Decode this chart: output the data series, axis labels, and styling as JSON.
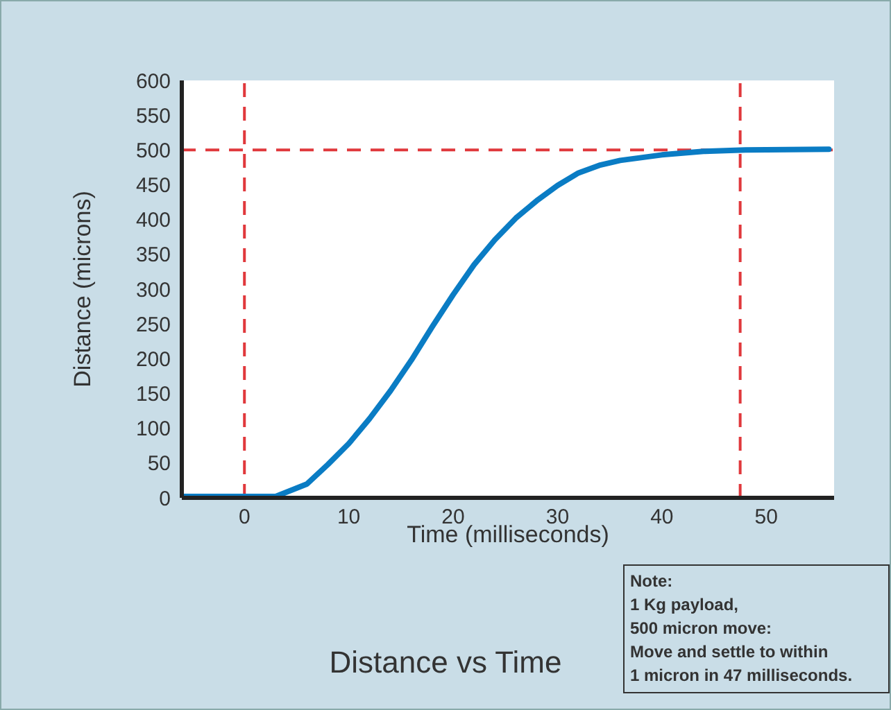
{
  "chart_data": {
    "type": "line",
    "title": "Distance vs Time",
    "xlabel": "Time (milliseconds)",
    "ylabel": "Distance (microns)",
    "x": [
      -6,
      3,
      6,
      8,
      10,
      12,
      14,
      16,
      18,
      20,
      22,
      24,
      26,
      28,
      30,
      32,
      34,
      36,
      40,
      44,
      48,
      56
    ],
    "series": [
      {
        "color": "#0a7cc4",
        "values": [
          2,
          2,
          20,
          48,
          78,
          114,
          154,
          198,
          246,
          292,
          335,
          371,
          402,
          427,
          449,
          467,
          478,
          485,
          493,
          498,
          500,
          501
        ]
      }
    ],
    "xlim": [
      -6,
      56.5
    ],
    "xticks": [
      0,
      10,
      20,
      30,
      40,
      50
    ],
    "ylim": [
      0,
      600
    ],
    "yticks": [
      0,
      50,
      100,
      150,
      200,
      250,
      300,
      350,
      400,
      450,
      500,
      550,
      600
    ],
    "grid": false,
    "marker": "none",
    "line_style": "solid",
    "ref_lines": [
      {
        "axis": "x",
        "value": 0,
        "color": "#e0383c",
        "line_style": "dashed"
      },
      {
        "axis": "x",
        "value": 47.5,
        "color": "#e0383c",
        "line_style": "dashed"
      },
      {
        "axis": "y",
        "value": 500,
        "color": "#e0383c",
        "line_style": "dashed"
      }
    ],
    "annotations": [
      "Note:",
      "1 Kg payload,",
      "500 micron move:",
      "Move and settle to within",
      "1 micron in 47 milliseconds."
    ]
  }
}
